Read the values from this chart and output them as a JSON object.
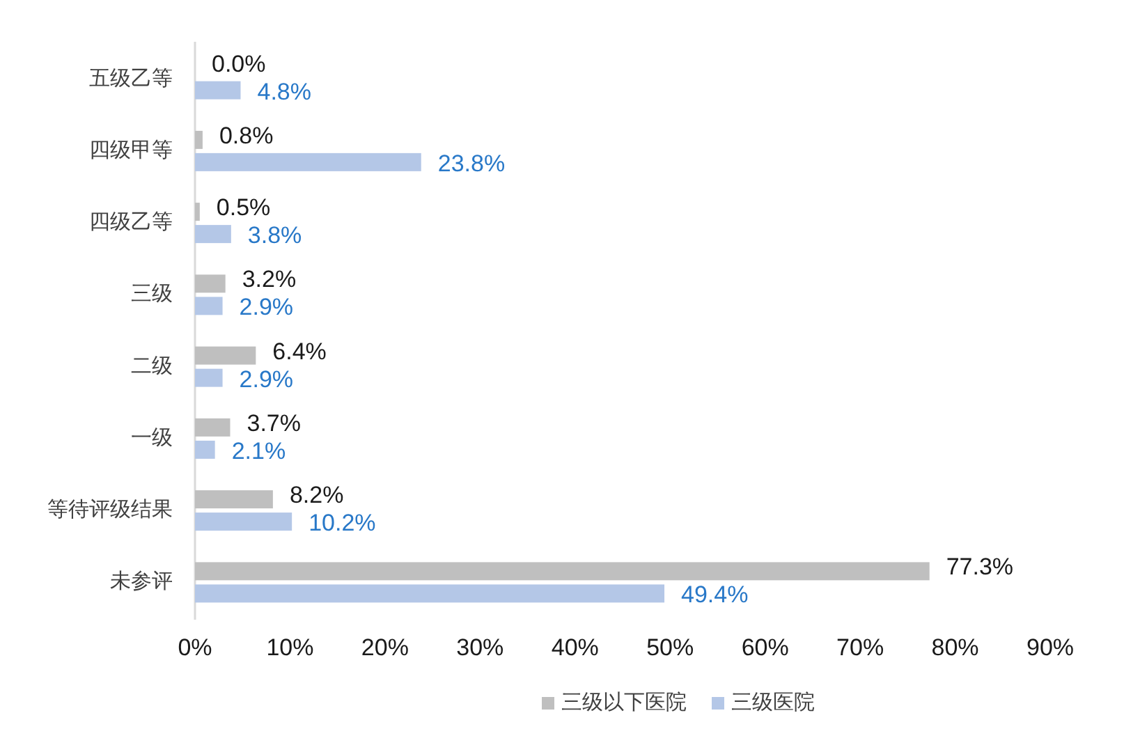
{
  "chart_data": {
    "type": "bar",
    "orientation": "horizontal",
    "categories": [
      "五级乙等",
      "四级甲等",
      "四级乙等",
      "三级",
      "二级",
      "一级",
      "等待评级结果",
      "未参评"
    ],
    "series": [
      {
        "name": "三级以下医院",
        "color": "#bfbfbf",
        "values": [
          0.0,
          0.8,
          0.5,
          3.2,
          6.4,
          3.7,
          8.2,
          77.3
        ],
        "value_labels": [
          "0.0%",
          "0.8%",
          "0.5%",
          "3.2%",
          "6.4%",
          "3.7%",
          "8.2%",
          "77.3%"
        ]
      },
      {
        "name": "三级医院",
        "color": "#b4c7e7",
        "values": [
          4.8,
          23.8,
          3.8,
          2.9,
          2.9,
          2.1,
          10.2,
          49.4
        ],
        "value_labels": [
          "4.8%",
          "23.8%",
          "3.8%",
          "2.9%",
          "2.9%",
          "2.1%",
          "10.2%",
          "49.4%"
        ]
      }
    ],
    "xlim": [
      0,
      90
    ],
    "xticks": [
      {
        "value": 0,
        "label": "0%"
      },
      {
        "value": 10,
        "label": "10%"
      },
      {
        "value": 20,
        "label": "20%"
      },
      {
        "value": 30,
        "label": "30%"
      },
      {
        "value": 40,
        "label": "40%"
      },
      {
        "value": 50,
        "label": "50%"
      },
      {
        "value": 60,
        "label": "60%"
      },
      {
        "value": 70,
        "label": "70%"
      },
      {
        "value": 80,
        "label": "80%"
      },
      {
        "value": 90,
        "label": "90%"
      }
    ],
    "legend": "bottom"
  }
}
